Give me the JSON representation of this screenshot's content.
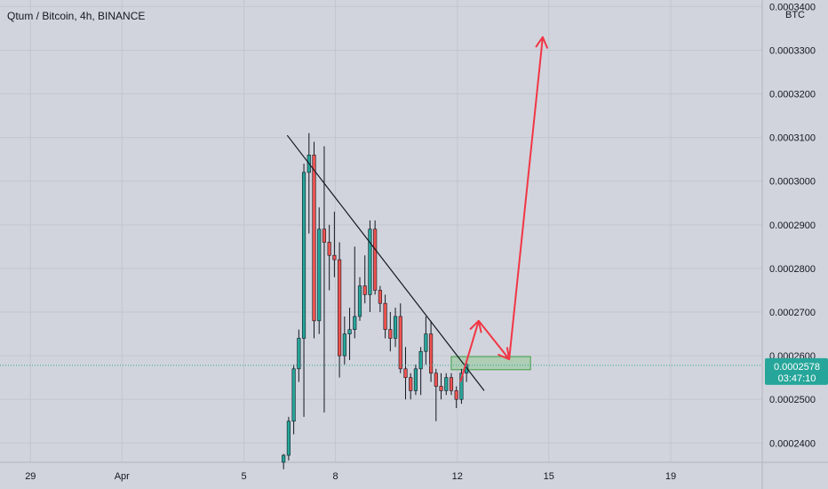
{
  "chart_data": {
    "type": "candlestick",
    "title": "Qtum / Bitcoin, 4h, BINANCE",
    "currency": "BTC",
    "y_ticks": [
      "0.0002400",
      "0.0002500",
      "0.0002600",
      "0.0002700",
      "0.0002800",
      "0.0002900",
      "0.0003000",
      "0.0003100",
      "0.0003200",
      "0.0003300",
      "0.0003400"
    ],
    "x_ticks": [
      {
        "label": "29",
        "day": 29
      },
      {
        "label": "Apr",
        "day": 32
      },
      {
        "label": "5",
        "day": 36
      },
      {
        "label": "8",
        "day": 39
      },
      {
        "label": "12",
        "day": 43
      },
      {
        "label": "15",
        "day": 46
      },
      {
        "label": "19",
        "day": 50
      }
    ],
    "ylim": [
      0.00023558,
      0.0003415
    ],
    "xlim": [
      28,
      53
    ],
    "current_price": "0.0002578",
    "countdown": "03:47:10",
    "colors": {
      "up": "#26a69a",
      "down": "#ef5350",
      "background": "#d1d4dc",
      "arrow": "#f23645",
      "zone": "#81c784",
      "tag": "#26a69a"
    },
    "candles": [
      {
        "o": 0.0002356,
        "h": 0.0002375,
        "l": 0.000234,
        "c": 0.0002372
      },
      {
        "o": 0.0002372,
        "h": 0.000246,
        "l": 0.000236,
        "c": 0.000245
      },
      {
        "o": 0.000245,
        "h": 0.000258,
        "l": 0.000242,
        "c": 0.000257
      },
      {
        "o": 0.000257,
        "h": 0.000266,
        "l": 0.000254,
        "c": 0.000264
      },
      {
        "o": 0.000264,
        "h": 0.000304,
        "l": 0.000246,
        "c": 0.000302
      },
      {
        "o": 0.000302,
        "h": 0.000311,
        "l": 0.000288,
        "c": 0.000306
      },
      {
        "o": 0.000306,
        "h": 0.000309,
        "l": 0.000264,
        "c": 0.000268
      },
      {
        "o": 0.000268,
        "h": 0.000294,
        "l": 0.000265,
        "c": 0.000289
      },
      {
        "o": 0.000289,
        "h": 0.000308,
        "l": 0.000247,
        "c": 0.000286
      },
      {
        "o": 0.000286,
        "h": 0.00029,
        "l": 0.000275,
        "c": 0.000283
      },
      {
        "o": 0.000283,
        "h": 0.000293,
        "l": 0.000278,
        "c": 0.000282
      },
      {
        "o": 0.000282,
        "h": 0.000286,
        "l": 0.000255,
        "c": 0.00026
      },
      {
        "o": 0.00026,
        "h": 0.000269,
        "l": 0.000258,
        "c": 0.000265
      },
      {
        "o": 0.000265,
        "h": 0.000271,
        "l": 0.000259,
        "c": 0.000266
      },
      {
        "o": 0.000266,
        "h": 0.000285,
        "l": 0.000264,
        "c": 0.000269
      },
      {
        "o": 0.000269,
        "h": 0.000278,
        "l": 0.000268,
        "c": 0.000276
      },
      {
        "o": 0.000276,
        "h": 0.000283,
        "l": 0.000272,
        "c": 0.000274
      },
      {
        "o": 0.000274,
        "h": 0.000291,
        "l": 0.00027,
        "c": 0.000289
      },
      {
        "o": 0.000289,
        "h": 0.000291,
        "l": 0.000274,
        "c": 0.000275
      },
      {
        "o": 0.000275,
        "h": 0.000276,
        "l": 0.00027,
        "c": 0.000272
      },
      {
        "o": 0.000272,
        "h": 0.000274,
        "l": 0.000264,
        "c": 0.000266
      },
      {
        "o": 0.000266,
        "h": 0.00027,
        "l": 0.000261,
        "c": 0.000264
      },
      {
        "o": 0.000264,
        "h": 0.000271,
        "l": 0.000262,
        "c": 0.000269
      },
      {
        "o": 0.000269,
        "h": 0.000272,
        "l": 0.000256,
        "c": 0.000257
      },
      {
        "o": 0.000257,
        "h": 0.000262,
        "l": 0.00025,
        "c": 0.000255
      },
      {
        "o": 0.000255,
        "h": 0.000256,
        "l": 0.00025,
        "c": 0.000252
      },
      {
        "o": 0.000252,
        "h": 0.000258,
        "l": 0.000251,
        "c": 0.000257
      },
      {
        "o": 0.000257,
        "h": 0.000262,
        "l": 0.000251,
        "c": 0.000261
      },
      {
        "o": 0.000261,
        "h": 0.000269,
        "l": 0.000258,
        "c": 0.000265
      },
      {
        "o": 0.000265,
        "h": 0.000268,
        "l": 0.000254,
        "c": 0.000256
      },
      {
        "o": 0.000256,
        "h": 0.000257,
        "l": 0.000245,
        "c": 0.000253
      },
      {
        "o": 0.000253,
        "h": 0.000256,
        "l": 0.00025,
        "c": 0.000252
      },
      {
        "o": 0.000252,
        "h": 0.000256,
        "l": 0.000251,
        "c": 0.000255
      },
      {
        "o": 0.000255,
        "h": 0.000256,
        "l": 0.000251,
        "c": 0.000252
      },
      {
        "o": 0.000252,
        "h": 0.000253,
        "l": 0.000248,
        "c": 0.00025
      },
      {
        "o": 0.00025,
        "h": 0.000257,
        "l": 0.000249,
        "c": 0.000256
      },
      {
        "o": 0.000256,
        "h": 0.000259,
        "l": 0.000254,
        "c": 0.000258
      }
    ],
    "first_candle_day": 37.3,
    "candle_step_day": 0.1667,
    "trendline": [
      {
        "day": 37.42,
        "price": 0.0003105
      },
      {
        "day": 43.88,
        "price": 0.000252
      }
    ],
    "zone": {
      "day_start": 42.8,
      "day_end": 45.4,
      "top": 0.0002598,
      "bottom": 0.0002568
    },
    "arrow_path": [
      {
        "day": 43.1,
        "price": 0.000254
      },
      {
        "day": 43.7,
        "price": 0.000268
      },
      {
        "day": 44.7,
        "price": 0.0002592
      },
      {
        "day": 45.8,
        "price": 0.000333
      }
    ]
  }
}
